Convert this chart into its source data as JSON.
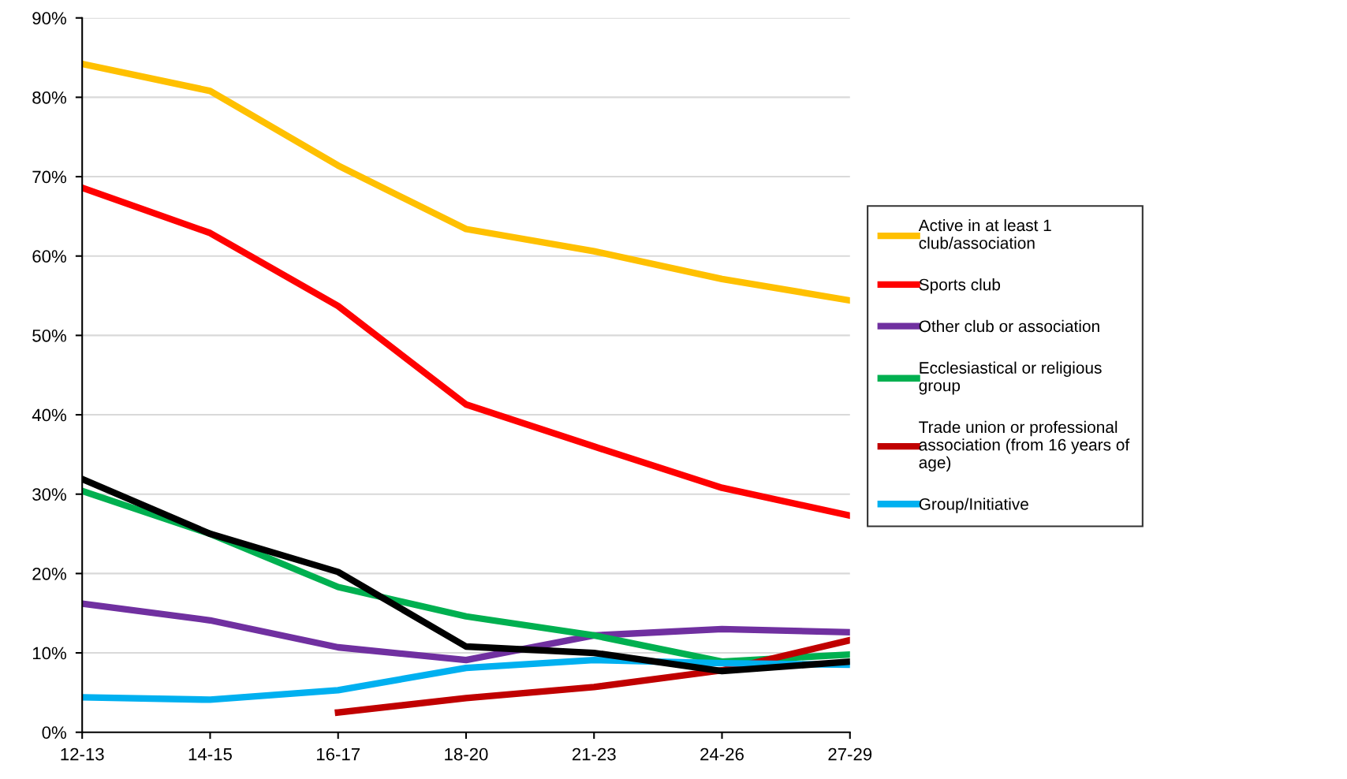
{
  "chart_data": {
    "type": "line",
    "categories": [
      "12-13",
      "14-15",
      "16-17",
      "18-20",
      "21-23",
      "24-26",
      "27-29"
    ],
    "series": [
      {
        "name": "Active in at least 1\nclub/association",
        "color": "#ffc000",
        "values": [
          84.2,
          80.8,
          71.4,
          63.4,
          60.6,
          57.1,
          54.4
        ]
      },
      {
        "name": "Sports club",
        "color": "#ff0000",
        "values": [
          68.6,
          62.9,
          53.7,
          41.3,
          36.0,
          30.8,
          27.3
        ]
      },
      {
        "name": "Other club or association",
        "color": "#7030a0",
        "values": [
          16.2,
          14.1,
          10.7,
          9.1,
          12.2,
          13.0,
          12.6
        ]
      },
      {
        "name": "Ecclesiastical or religious\ngroup",
        "color": "#00b050",
        "values": [
          30.4,
          25.0,
          18.3,
          14.6,
          12.2,
          8.9,
          9.8
        ]
      },
      {
        "name": "Trade union or professional\nassociation (from 16 years of\nage)",
        "color": "#c00000",
        "values": [
          null,
          null,
          2.5,
          4.3,
          5.7,
          7.8,
          11.6
        ]
      },
      {
        "name": "Group/Initiative",
        "color": "#00b0f0",
        "values": [
          4.4,
          4.1,
          5.3,
          8.1,
          9.1,
          8.7,
          8.5
        ]
      },
      {
        "color": "#000000",
        "values": [
          31.9,
          25.0,
          20.2,
          10.8,
          10.0,
          7.7,
          8.9
        ]
      }
    ],
    "ylim": [
      0,
      90
    ],
    "yticks": [
      {
        "value": 0,
        "label": "0%"
      },
      {
        "value": 10,
        "label": "10%"
      },
      {
        "value": 20,
        "label": "20%"
      },
      {
        "value": 30,
        "label": "30%"
      },
      {
        "value": 40,
        "label": "40%"
      },
      {
        "value": 50,
        "label": "50%"
      },
      {
        "value": 60,
        "label": "60%"
      },
      {
        "value": 70,
        "label": "70%"
      },
      {
        "value": 80,
        "label": "80%"
      },
      {
        "value": 90,
        "label": "90%"
      }
    ],
    "grid": "y",
    "legend": "right",
    "marker": "none",
    "line_style": "solid"
  }
}
